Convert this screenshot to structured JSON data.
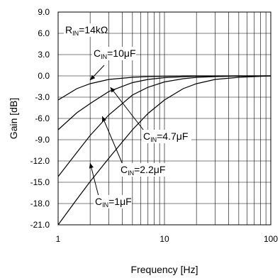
{
  "chart_data": {
    "type": "line",
    "xlabel": "Frequency [Hz]",
    "ylabel": "Gain [dB]",
    "x_scale": "log",
    "xlim": [
      1,
      100
    ],
    "ylim": [
      -21,
      9
    ],
    "x_ticks": [
      1,
      10,
      100
    ],
    "x_tick_labels": [
      "1",
      "10",
      "100"
    ],
    "y_ticks": [
      9,
      6,
      3,
      0,
      -3,
      -6,
      -9,
      -12,
      -15,
      -18,
      -21
    ],
    "y_tick_labels": [
      "9.0",
      "6.0",
      "3.0",
      "0.0",
      "-3.0",
      "-6.0",
      "-9.0",
      "-12.0",
      "-15.0",
      "-18.0",
      "-21.0"
    ],
    "grid": true,
    "annotations": [
      {
        "id": "rin",
        "base": "R",
        "sub": "IN",
        "rest": "=14kΩ"
      },
      {
        "id": "c10",
        "base": "C",
        "sub": "IN",
        "rest": "=10μF",
        "arrow_to": {
          "x": 2.0,
          "y": -0.6
        }
      },
      {
        "id": "c47",
        "base": "C",
        "sub": "IN",
        "rest": "=4.7μF",
        "arrow_to": {
          "x": 3.1,
          "y": -1.6
        }
      },
      {
        "id": "c22",
        "base": "C",
        "sub": "IN",
        "rest": "=2.2μF",
        "arrow_to": {
          "x": 2.6,
          "y": -5.7
        }
      },
      {
        "id": "c1",
        "base": "C",
        "sub": "IN",
        "rest": "=1μF",
        "arrow_to": {
          "x": 2.0,
          "y": -12.3
        }
      }
    ],
    "series": [
      {
        "x": [
          1,
          1.5,
          2,
          3,
          5,
          7,
          10,
          15,
          20,
          30,
          50,
          100
        ],
        "values": [
          -3.4,
          -1.8,
          -1.1,
          -0.5,
          -0.2,
          -0.1,
          -0.05,
          0,
          0,
          0,
          0,
          0
        ]
      },
      {
        "x": [
          1,
          1.5,
          2,
          3,
          5,
          7,
          10,
          15,
          20,
          30,
          50,
          100
        ],
        "values": [
          -7.6,
          -5.2,
          -3.9,
          -2.2,
          -0.95,
          -0.5,
          -0.25,
          -0.12,
          -0.07,
          -0.03,
          0,
          0
        ]
      },
      {
        "x": [
          1,
          1.5,
          2,
          3,
          5,
          7,
          10,
          15,
          20,
          30,
          50,
          100
        ],
        "values": [
          -14.2,
          -10.8,
          -8.4,
          -5.5,
          -2.7,
          -1.6,
          -0.85,
          -0.4,
          -0.22,
          -0.1,
          -0.03,
          0
        ]
      },
      {
        "x": [
          1,
          1.5,
          2,
          3,
          5,
          7,
          10,
          15,
          20,
          30,
          50,
          100
        ],
        "values": [
          -21,
          -17.4,
          -14.9,
          -11.6,
          -7.6,
          -5.3,
          -3.4,
          -1.8,
          -1.1,
          -0.5,
          -0.2,
          0
        ]
      }
    ]
  }
}
